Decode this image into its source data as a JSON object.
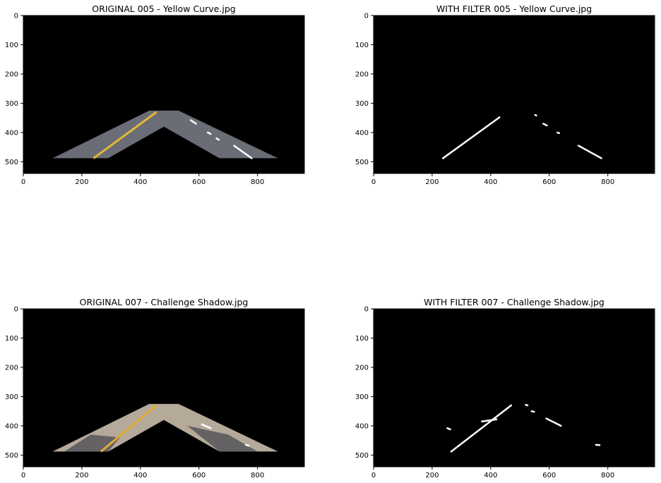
{
  "chart_data": [
    {
      "type": "image",
      "title": "ORIGINAL 005 - Yellow Curve.jpg",
      "content": "masked road color image",
      "xlim": [
        0,
        960
      ],
      "ylim": [
        540,
        0
      ],
      "xticks": [
        0,
        200,
        400,
        600,
        800
      ],
      "yticks": [
        0,
        100,
        200,
        300,
        400,
        500
      ],
      "mask_polygon": [
        [
          100,
          488
        ],
        [
          430,
          325
        ],
        [
          530,
          325
        ],
        [
          870,
          488
        ],
        [
          670,
          488
        ],
        [
          480,
          380
        ],
        [
          290,
          488
        ]
      ],
      "road_color": "#6a6c76",
      "yellow_line": [
        [
          240,
          488
        ],
        [
          455,
          330
        ]
      ],
      "yellow_color": "#e3b83a",
      "white_marks": [
        [
          [
            720,
            445
          ],
          [
            780,
            488
          ]
        ],
        [
          [
            572,
            358
          ],
          [
            590,
            370
          ]
        ],
        [
          [
            630,
            400
          ],
          [
            640,
            405
          ]
        ],
        [
          [
            660,
            420
          ],
          [
            668,
            425
          ]
        ]
      ],
      "background": "#000000"
    },
    {
      "type": "image",
      "title": "WITH FILTER 005 - Yellow Curve.jpg",
      "content": "binary filtered lane lines",
      "xlim": [
        0,
        960
      ],
      "ylim": [
        540,
        0
      ],
      "xticks": [
        0,
        200,
        400,
        600,
        800
      ],
      "yticks": [
        0,
        100,
        200,
        300,
        400,
        500
      ],
      "white_marks": [
        [
          [
            237,
            488
          ],
          [
            430,
            348
          ]
        ],
        [
          [
            700,
            445
          ],
          [
            778,
            488
          ]
        ],
        [
          [
            552,
            340
          ],
          [
            556,
            342
          ]
        ],
        [
          [
            580,
            370
          ],
          [
            592,
            376
          ]
        ],
        [
          [
            628,
            400
          ],
          [
            634,
            402
          ]
        ]
      ],
      "background": "#000000"
    },
    {
      "type": "image",
      "title": "ORIGINAL 007 - Challenge Shadow.jpg",
      "content": "masked road color image with shadows",
      "xlim": [
        0,
        960
      ],
      "ylim": [
        540,
        0
      ],
      "xticks": [
        0,
        200,
        400,
        600,
        800
      ],
      "yticks": [
        0,
        100,
        200,
        300,
        400,
        500
      ],
      "mask_polygon": [
        [
          100,
          488
        ],
        [
          430,
          325
        ],
        [
          530,
          325
        ],
        [
          870,
          488
        ],
        [
          670,
          488
        ],
        [
          480,
          380
        ],
        [
          290,
          488
        ]
      ],
      "road_color": "#b5aa9a",
      "shadow_color": "#4a4a52",
      "yellow_line": [
        [
          265,
          488
        ],
        [
          455,
          330
        ]
      ],
      "yellow_color": "#e0ad35",
      "white_marks": [
        [
          [
            610,
            395
          ],
          [
            640,
            408
          ]
        ],
        [
          [
            760,
            465
          ],
          [
            770,
            468
          ]
        ]
      ],
      "background": "#000000"
    },
    {
      "type": "image",
      "title": "WITH FILTER 007 - Challenge Shadow.jpg",
      "content": "binary filtered lane lines with noise",
      "xlim": [
        0,
        960
      ],
      "ylim": [
        540,
        0
      ],
      "xticks": [
        0,
        200,
        400,
        600,
        800
      ],
      "yticks": [
        0,
        100,
        200,
        300,
        400,
        500
      ],
      "white_marks": [
        [
          [
            265,
            488
          ],
          [
            470,
            330
          ]
        ],
        [
          [
            590,
            375
          ],
          [
            640,
            400
          ]
        ],
        [
          [
            370,
            385
          ],
          [
            420,
            378
          ]
        ],
        [
          [
            252,
            408
          ],
          [
            262,
            412
          ]
        ],
        [
          [
            760,
            465
          ],
          [
            772,
            466
          ]
        ],
        [
          [
            540,
            350
          ],
          [
            548,
            352
          ]
        ],
        [
          [
            520,
            328
          ],
          [
            526,
            330
          ]
        ]
      ],
      "background": "#000000"
    }
  ]
}
